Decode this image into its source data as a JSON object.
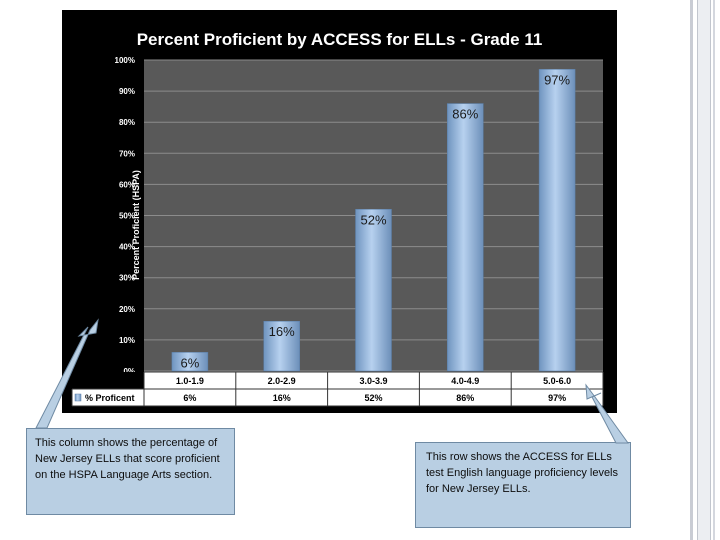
{
  "chart_data": {
    "type": "bar",
    "title": "Percent Proficient by ACCESS for ELLs - Grade 11",
    "ylabel": "Percent Proficient (HSPA)",
    "xlabel": "",
    "categories": [
      "1.0-1.9",
      "2.0-2.9",
      "3.0-3.9",
      "4.0-4.9",
      "5.0-6.0"
    ],
    "series": [
      {
        "name": "% Proficent",
        "values": [
          6,
          16,
          52,
          86,
          97
        ]
      }
    ],
    "data_labels": [
      "6%",
      "16%",
      "52%",
      "86%",
      "97%"
    ],
    "table_values": [
      "6%",
      "16%",
      "52%",
      "86%",
      "97%"
    ],
    "ylim": [
      0,
      100
    ],
    "yticks": [
      "0%",
      "10%",
      "20%",
      "30%",
      "40%",
      "50%",
      "60%",
      "70%",
      "80%",
      "90%",
      "100%"
    ],
    "grid": true,
    "legend": "data table below plot",
    "colors": {
      "background": "#000000",
      "plot_area": "#595959",
      "bar": "#8db3de",
      "text": "#ffffff"
    }
  },
  "callouts": {
    "left": "This column shows the percentage of New Jersey ELLs that score proficient on the HSPA Language Arts section.",
    "right": "This row shows the ACCESS for ELLs test English language proficiency levels for New Jersey ELLs."
  }
}
